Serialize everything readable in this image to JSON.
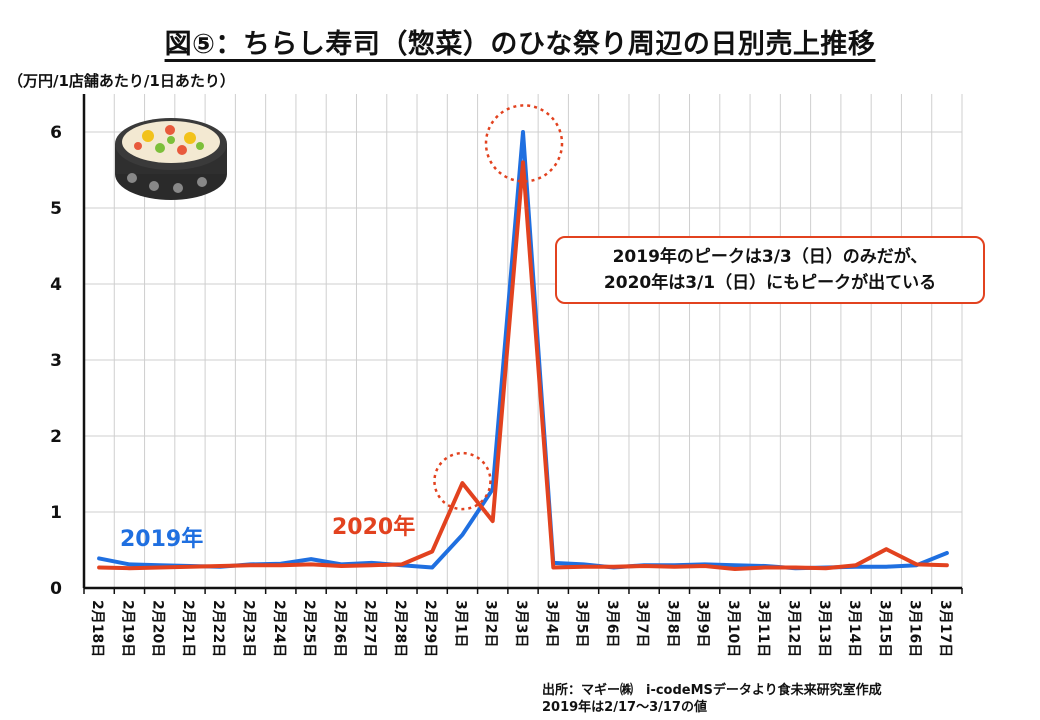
{
  "title": "図⑤：ちらし寿司（惣菜）のひな祭り周辺の日別売上推移",
  "unit_label": "（万円/1店舗あたり/1日あたり）",
  "callout": {
    "line1": "2019年のピークは3/3（日）のみだが、",
    "line2": "2020年は3/1（日）にもピークが出ている"
  },
  "source": {
    "line1": "出所：マギー㈱　i-codeMSデータより食未来研究室作成",
    "line2": "2019年は2/17～3/17の値"
  },
  "colors": {
    "series_2019": "#1f6fe0",
    "series_2020": "#e2421f",
    "grid": "#cfcfcf",
    "highlight": "#e2421f"
  },
  "chart_data": {
    "type": "line",
    "title": "図⑤：ちらし寿司（惣菜）のひな祭り周辺の日別売上推移",
    "ylabel": "（万円/1店舗あたり/1日あたり）",
    "xlabel": "",
    "ylim": [
      0,
      6.5
    ],
    "yticks": [
      "0",
      "1",
      "2",
      "3",
      "4",
      "5",
      "6"
    ],
    "categories": [
      "2月18日",
      "2月19日",
      "2月20日",
      "2月21日",
      "2月22日",
      "2月23日",
      "2月24日",
      "2月25日",
      "2月26日",
      "2月27日",
      "2月28日",
      "2月29日",
      "3月1日",
      "3月2日",
      "3月3日",
      "3月4日",
      "3月5日",
      "3月6日",
      "3月7日",
      "3月8日",
      "3月9日",
      "3月10日",
      "3月11日",
      "3月12日",
      "3月13日",
      "3月14日",
      "3月15日",
      "3月16日",
      "3月17日"
    ],
    "series": [
      {
        "name": "2019年",
        "values": [
          0.39,
          0.31,
          0.3,
          0.29,
          0.28,
          0.31,
          0.32,
          0.38,
          0.31,
          0.33,
          0.3,
          0.27,
          0.7,
          1.3,
          6.0,
          0.33,
          0.31,
          0.27,
          0.3,
          0.3,
          0.31,
          0.3,
          0.29,
          0.26,
          0.27,
          0.28,
          0.28,
          0.3,
          0.46
        ]
      },
      {
        "name": "2020年",
        "values": [
          0.27,
          0.26,
          0.27,
          0.28,
          0.29,
          0.3,
          0.3,
          0.31,
          0.29,
          0.3,
          0.31,
          0.48,
          1.38,
          0.88,
          5.6,
          0.27,
          0.28,
          0.28,
          0.29,
          0.28,
          0.29,
          0.25,
          0.27,
          0.27,
          0.26,
          0.3,
          0.51,
          0.31,
          0.3
        ]
      }
    ],
    "annotations": [
      "2019年のピークは3/3（日）のみだが、",
      "2020年は3/1（日）にもピークが出ている"
    ]
  }
}
